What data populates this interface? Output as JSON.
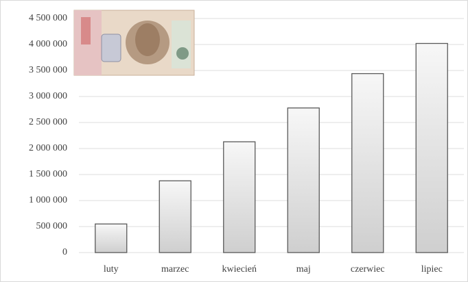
{
  "chart_data": {
    "type": "bar",
    "categories": [
      "luty",
      "marzec",
      "kwiecień",
      "maj",
      "czerwiec",
      "lipiec"
    ],
    "values": [
      550000,
      1380000,
      2130000,
      2780000,
      3440000,
      4020000
    ],
    "color": "#d9d9d9",
    "ylim": [
      0,
      4500000
    ],
    "yticks": [
      0,
      {
        "value": 500000,
        "label": "500 000"
      },
      {
        "value": 1000000,
        "label": "1 000 000"
      },
      {
        "value": 1500000,
        "label": "1 500 000"
      },
      {
        "value": 2000000,
        "label": "2 000 000"
      },
      {
        "value": 2500000,
        "label": "2 500 000"
      },
      {
        "value": 3000000,
        "label": "3 000 000"
      },
      {
        "value": 3500000,
        "label": "3 500 000"
      },
      {
        "value": 4000000,
        "label": "4 000 000"
      },
      {
        "value": 4500000,
        "label": "4 500 000"
      }
    ],
    "grid": true
  }
}
